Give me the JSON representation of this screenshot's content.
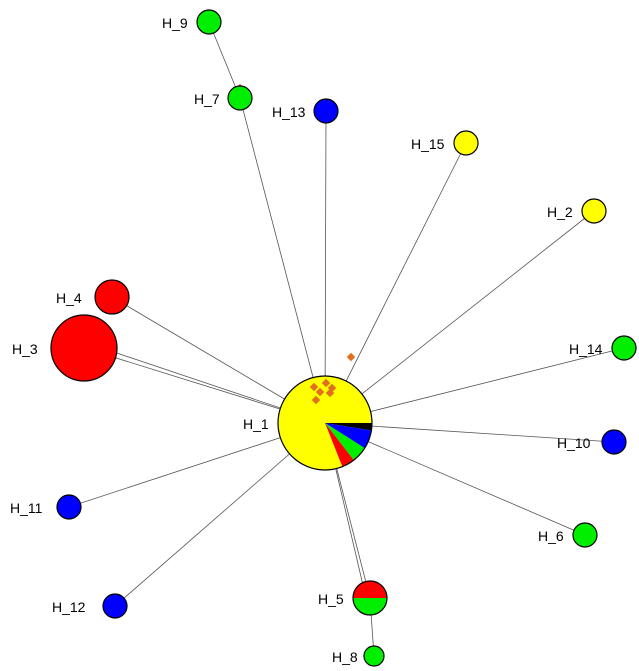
{
  "colors": {
    "yellow": "#ffff00",
    "red": "#ff0000",
    "green": "#00ee00",
    "blue": "#0000ff",
    "black": "#000000",
    "median_vector": "#e07020",
    "edge": "#555555"
  },
  "haplotypes": [
    {
      "id": "H_1",
      "label": "H_1",
      "composition": [
        {
          "color": "yellow",
          "fraction": 0.81
        },
        {
          "color": "red",
          "fraction": 0.045
        },
        {
          "color": "green",
          "fraction": 0.055
        },
        {
          "color": "blue",
          "fraction": 0.065
        },
        {
          "color": "black",
          "fraction": 0.025
        }
      ]
    },
    {
      "id": "H_2",
      "label": "H_2",
      "composition": [
        {
          "color": "yellow",
          "fraction": 1
        }
      ]
    },
    {
      "id": "H_3",
      "label": "H_3",
      "composition": [
        {
          "color": "red",
          "fraction": 1
        }
      ]
    },
    {
      "id": "H_4",
      "label": "H_4",
      "composition": [
        {
          "color": "red",
          "fraction": 1
        }
      ]
    },
    {
      "id": "H_5",
      "label": "H_5",
      "composition": [
        {
          "color": "red",
          "fraction": 0.5
        },
        {
          "color": "green",
          "fraction": 0.5
        }
      ]
    },
    {
      "id": "H_6",
      "label": "H_6",
      "composition": [
        {
          "color": "green",
          "fraction": 1
        }
      ]
    },
    {
      "id": "H_7",
      "label": "H_7",
      "composition": [
        {
          "color": "green",
          "fraction": 1
        }
      ]
    },
    {
      "id": "H_8",
      "label": "H_8",
      "composition": [
        {
          "color": "green",
          "fraction": 1
        }
      ]
    },
    {
      "id": "H_9",
      "label": "H_9",
      "composition": [
        {
          "color": "green",
          "fraction": 1
        }
      ]
    },
    {
      "id": "H_10",
      "label": "H_10",
      "composition": [
        {
          "color": "blue",
          "fraction": 1
        }
      ]
    },
    {
      "id": "H_11",
      "label": "H_11",
      "composition": [
        {
          "color": "blue",
          "fraction": 1
        }
      ]
    },
    {
      "id": "H_12",
      "label": "H_12",
      "composition": [
        {
          "color": "blue",
          "fraction": 1
        }
      ]
    },
    {
      "id": "H_13",
      "label": "H_13",
      "composition": [
        {
          "color": "blue",
          "fraction": 1
        }
      ]
    },
    {
      "id": "H_14",
      "label": "H_14",
      "composition": [
        {
          "color": "green",
          "fraction": 1
        }
      ]
    },
    {
      "id": "H_15",
      "label": "H_15",
      "composition": [
        {
          "color": "yellow",
          "fraction": 1
        }
      ]
    }
  ],
  "edges": [
    [
      "H_1",
      "H_2"
    ],
    [
      "H_1",
      "H_3"
    ],
    [
      "H_1",
      "H_4"
    ],
    [
      "H_1",
      "H_5"
    ],
    [
      "H_1",
      "H_6"
    ],
    [
      "H_1",
      "H_7"
    ],
    [
      "H_1",
      "H_10"
    ],
    [
      "H_1",
      "H_11"
    ],
    [
      "H_1",
      "H_12"
    ],
    [
      "H_1",
      "H_13"
    ],
    [
      "H_1",
      "H_14"
    ],
    [
      "H_1",
      "H_15"
    ],
    [
      "H_5",
      "H_8"
    ],
    [
      "H_7",
      "H_9"
    ]
  ]
}
